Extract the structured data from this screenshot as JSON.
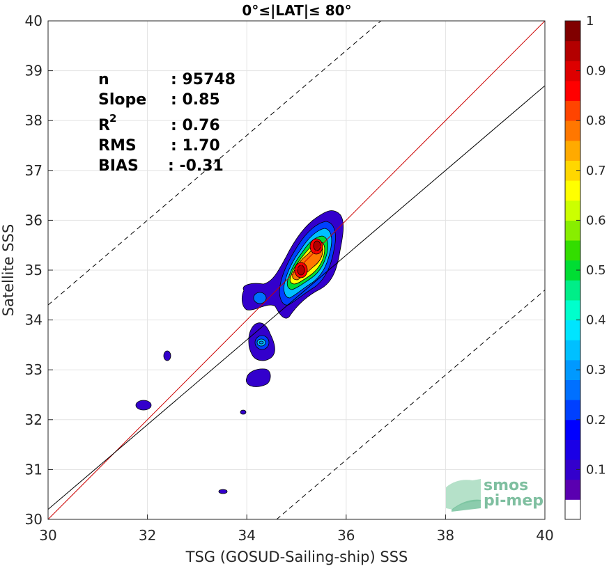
{
  "chart_data": {
    "type": "contour-density",
    "title": "0°≤|LAT|≤ 80°",
    "xlabel": "TSG (GOSUD-Sailing-ship) SSS",
    "ylabel": "Satellite SSS",
    "xlim": [
      30,
      40
    ],
    "ylim": [
      30,
      40
    ],
    "xticks": [
      "30",
      "32",
      "34",
      "36",
      "38",
      "40"
    ],
    "yticks": [
      "30",
      "31",
      "32",
      "33",
      "34",
      "35",
      "36",
      "37",
      "38",
      "39",
      "40"
    ],
    "grid": true,
    "reference_lines": {
      "one_to_one": {
        "color": "#cc0000",
        "points": [
          [
            30,
            30
          ],
          [
            40,
            40
          ]
        ]
      },
      "regression": {
        "color": "#000000",
        "points": [
          [
            30,
            30.2
          ],
          [
            40,
            38.7
          ]
        ]
      },
      "upper_dashed": {
        "points": [
          [
            30,
            34.3
          ],
          [
            36.7,
            40
          ]
        ]
      },
      "lower_dashed": {
        "points": [
          [
            34.6,
            30
          ],
          [
            40,
            34.6
          ]
        ]
      }
    },
    "stats": {
      "n_label": "n",
      "n_value": ": 95748",
      "slope_label": "Slope",
      "slope_value": ": 0.85",
      "r2_label": "R",
      "r2_sup": "2",
      "r2_value": ": 0.76",
      "rms_label": "RMS",
      "rms_value": ": 1.70",
      "bias_label": "BIAS",
      "bias_value": ": -0.31"
    },
    "colorbar": {
      "range": [
        0,
        1
      ],
      "ticks": [
        "0.1",
        "0.2",
        "0.3",
        "0.4",
        "0.5",
        "0.6",
        "0.7",
        "0.8",
        "0.9",
        "1"
      ],
      "colors": [
        "#ffffff",
        "#5a00b0",
        "#3300cc",
        "#1a00e6",
        "#0000ff",
        "#0040ff",
        "#0070ff",
        "#0099ff",
        "#00c0ff",
        "#00e5ff",
        "#00ffcc",
        "#00ee88",
        "#00dd33",
        "#33dd00",
        "#88ee00",
        "#ccff00",
        "#ffff00",
        "#ffd700",
        "#ffaa00",
        "#ff7700",
        "#ff4400",
        "#ff0000",
        "#dd0000",
        "#b30000",
        "#800000"
      ]
    },
    "density_blobs": [
      {
        "region": "main-ridge",
        "x": 35.2,
        "y": 35.2,
        "peak": 0.95
      },
      {
        "region": "upper-peak",
        "x": 35.4,
        "y": 35.5,
        "peak": 1.0
      },
      {
        "region": "lower-peak",
        "x": 35.0,
        "y": 35.0,
        "peak": 0.95
      },
      {
        "region": "mid-blob",
        "x": 34.2,
        "y": 34.4,
        "peak": 0.2
      },
      {
        "region": "small-blob",
        "x": 34.25,
        "y": 33.55,
        "peak": 0.3
      },
      {
        "region": "low-blob",
        "x": 34.25,
        "y": 32.85,
        "peak": 0.1
      },
      {
        "region": "isolated-1",
        "x": 32.4,
        "y": 33.3,
        "peak": 0.1
      },
      {
        "region": "isolated-2",
        "x": 31.95,
        "y": 32.25,
        "peak": 0.1
      },
      {
        "region": "isolated-3",
        "x": 33.95,
        "y": 32.15,
        "peak": 0.1
      },
      {
        "region": "isolated-4",
        "x": 33.5,
        "y": 30.55,
        "peak": 0.1
      }
    ]
  },
  "logo": {
    "line1": "smos",
    "line2": "pi-mep"
  }
}
